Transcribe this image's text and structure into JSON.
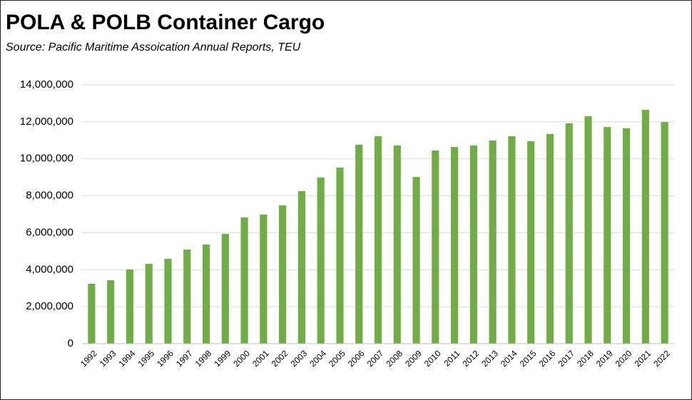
{
  "chart_data": {
    "type": "bar",
    "title": "POLA & POLB Container Cargo",
    "subtitle": "Source:  Pacific Maritime Assoication Annual Reports, TEU",
    "categories": [
      "1992",
      "1993",
      "1994",
      "1995",
      "1996",
      "1997",
      "1998",
      "1999",
      "2000",
      "2001",
      "2002",
      "2003",
      "2004",
      "2005",
      "2006",
      "2007",
      "2008",
      "2009",
      "2010",
      "2011",
      "2012",
      "2013",
      "2014",
      "2015",
      "2016",
      "2017",
      "2018",
      "2019",
      "2020",
      "2021",
      "2022"
    ],
    "values": [
      3240000,
      3430000,
      4010000,
      4320000,
      4590000,
      5090000,
      5360000,
      5940000,
      6830000,
      6980000,
      7480000,
      8250000,
      8990000,
      9530000,
      10760000,
      11220000,
      10720000,
      9020000,
      10450000,
      10640000,
      10720000,
      10990000,
      11220000,
      10950000,
      11340000,
      11920000,
      12300000,
      11720000,
      11650000,
      12650000,
      11990000
    ],
    "color": "#70ad47",
    "ylim": [
      0,
      14000000
    ],
    "yticks": [
      0,
      {
        "value": 2000000,
        "label": "2,000,000"
      },
      {
        "value": 4000000,
        "label": "4,000,000"
      },
      {
        "value": 6000000,
        "label": "6,000,000"
      },
      {
        "value": 8000000,
        "label": "8,000,000"
      },
      {
        "value": 10000000,
        "label": "10,000,000"
      },
      {
        "value": 12000000,
        "label": "12,000,000"
      },
      {
        "value": 14000000,
        "label": "14,000,000"
      }
    ],
    "grid": true
  }
}
